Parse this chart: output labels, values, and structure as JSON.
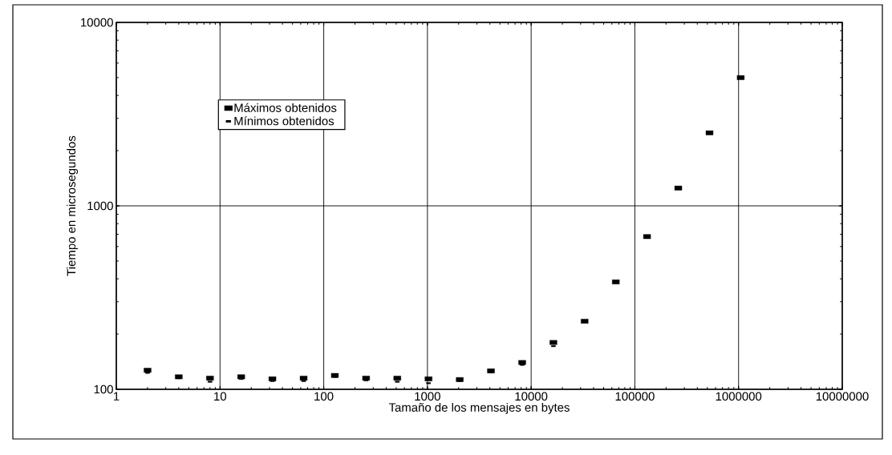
{
  "chart_data": {
    "type": "scatter",
    "xlabel": "Tamaño de los mensajes en bytes",
    "ylabel": "Tiempo en microsegundos",
    "x": [
      2,
      4,
      8,
      16,
      32,
      64,
      128,
      256,
      512,
      1024,
      2048,
      4096,
      8192,
      16384,
      32768,
      65536,
      131072,
      262144,
      524288,
      1048576
    ],
    "series": [
      {
        "name": "Máximos obtenidos",
        "color": "#000000",
        "values": [
          127,
          117,
          115,
          117,
          114,
          115,
          119,
          115,
          115,
          114,
          113,
          126,
          140,
          180,
          235,
          385,
          680,
          1250,
          2500,
          5000
        ]
      },
      {
        "name": "Mínimos obtenidos",
        "color": "#000000",
        "values": [
          123,
          115,
          110,
          114,
          111,
          111,
          117,
          112,
          110,
          108,
          111,
          124,
          136,
          172,
          null,
          null,
          null,
          null,
          null,
          null
        ]
      }
    ],
    "xlim": [
      1,
      10000000
    ],
    "ylim": [
      100,
      10000
    ],
    "xticks": [
      1,
      10,
      100,
      1000,
      10000,
      100000,
      1000000,
      10000000
    ],
    "yticks": [
      100,
      1000,
      10000
    ],
    "log": "xy",
    "grid": true,
    "legend": "top left"
  }
}
